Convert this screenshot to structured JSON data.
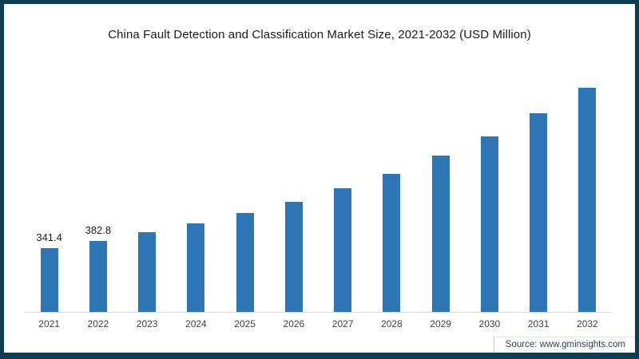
{
  "frame": {
    "border_color": "#0e3d52",
    "background": "#ffffff"
  },
  "title": "China Fault Detection and Classification Market Size, 2021-2032 (USD Million)",
  "source": "Source: www.gminsights.com",
  "chart_data": {
    "type": "bar",
    "title": "China Fault Detection and Classification Market Size, 2021-2032 (USD Million)",
    "categories": [
      "2021",
      "2022",
      "2023",
      "2024",
      "2025",
      "2026",
      "2027",
      "2028",
      "2029",
      "2030",
      "2031",
      "2032"
    ],
    "values": [
      341.4,
      382.8,
      427,
      475,
      532,
      593,
      663,
      743,
      838,
      944,
      1066,
      1203
    ],
    "data_labels": [
      "341.4",
      "382.8",
      "",
      "",
      "",
      "",
      "",
      "",
      "",
      "",
      "",
      ""
    ],
    "bar_color": "#2e75b6",
    "axis_line_color": "#d9d9d9",
    "value_label_color": "#1a1a1a",
    "tick_label_color": "#3f3f46",
    "title_color": "#1a1a1a",
    "xlabel": "",
    "ylabel": "",
    "ylim": [
      0,
      1290
    ],
    "grid": false,
    "legend": false,
    "value_labels_shown_for": [
      "2021",
      "2022"
    ]
  }
}
